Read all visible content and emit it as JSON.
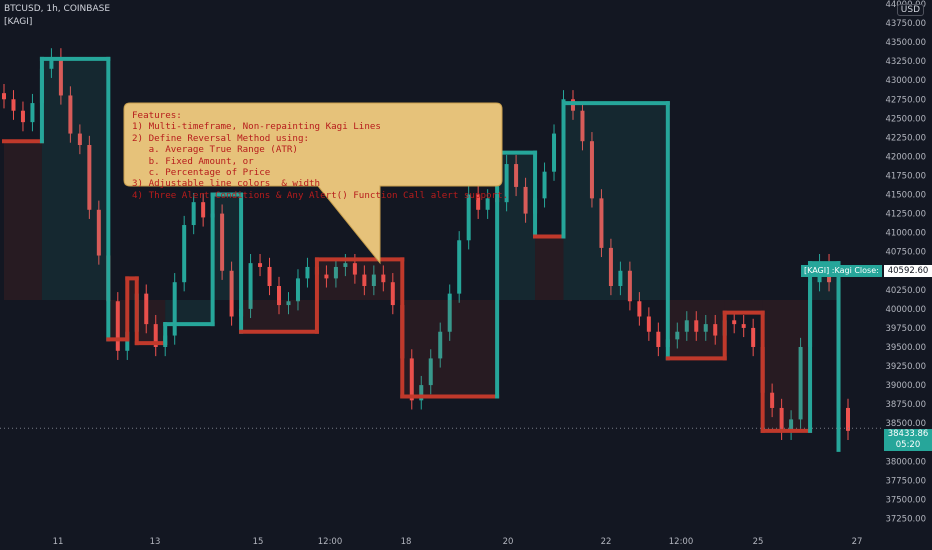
{
  "header": {
    "symbol_line": "BTCUSD, 1h, COINBASE",
    "indicator_line": "[KAGI]",
    "currency": "USD"
  },
  "callout": {
    "lines": [
      "Features:",
      "1) Multi-timeframe, Non-repainting Kagi Lines",
      "2) Define Reversal Method using:",
      "   a. Average True Range (ATR)",
      "   b. Fixed Amount, or",
      "   c. Percentage of Price",
      "3) Adjustable line colors  & width",
      "4) Three Alert Conditions & Any Alert() Function Call alert support."
    ],
    "fill": "#e6c27a",
    "text_color": "#b71c1c"
  },
  "labels": {
    "kagi_label": "[KAGI] :Kagi Close:",
    "kagi_price": "40592.60",
    "last_price": "38433.86",
    "countdown": "05:20"
  },
  "colors": {
    "background": "#131722",
    "up": "#26a69a",
    "down": "#ef5350",
    "kagi_yang": "#26a69a",
    "kagi_yin": "#c0392b"
  },
  "chart_data": {
    "type": "line",
    "title": "BTCUSD, 1h, COINBASE",
    "ylim": [
      37125,
      44000
    ],
    "y_ticks": [
      37250,
      37500,
      37750,
      38000,
      38250,
      38500,
      38750,
      39000,
      39250,
      39500,
      39750,
      40000,
      40250,
      40500,
      40750,
      41000,
      41250,
      41500,
      41750,
      42000,
      42250,
      42500,
      42750,
      43000,
      43250,
      43500,
      43750,
      44000
    ],
    "x_ticks": [
      "11",
      "13",
      "15",
      "12:00",
      "18",
      "20",
      "22",
      "12:00",
      "25",
      "27"
    ],
    "grid": false,
    "kagi_series": {
      "name": "Kagi Close",
      "points": [
        {
          "bar": 0,
          "price": 42200,
          "dir": "yin"
        },
        {
          "bar": 4,
          "price": 42200,
          "dir": "yin"
        },
        {
          "bar": 4,
          "price": 43280,
          "dir": "yang"
        },
        {
          "bar": 11,
          "price": 43280,
          "dir": "yang"
        },
        {
          "bar": 11,
          "price": 39600,
          "dir": "yin"
        },
        {
          "bar": 13,
          "price": 39600,
          "dir": "yin"
        },
        {
          "bar": 13,
          "price": 40400,
          "dir": "yin"
        },
        {
          "bar": 14,
          "price": 40400,
          "dir": "yin"
        },
        {
          "bar": 14,
          "price": 39550,
          "dir": "yin"
        },
        {
          "bar": 17,
          "price": 39550,
          "dir": "yin"
        },
        {
          "bar": 17,
          "price": 39800,
          "dir": "yang"
        },
        {
          "bar": 22,
          "price": 39800,
          "dir": "yang"
        },
        {
          "bar": 22,
          "price": 41500,
          "dir": "yang"
        },
        {
          "bar": 25,
          "price": 41500,
          "dir": "yang"
        },
        {
          "bar": 25,
          "price": 39700,
          "dir": "yin"
        },
        {
          "bar": 33,
          "price": 39700,
          "dir": "yin"
        },
        {
          "bar": 33,
          "price": 40650,
          "dir": "yin"
        },
        {
          "bar": 42,
          "price": 40650,
          "dir": "yin"
        },
        {
          "bar": 42,
          "price": 38850,
          "dir": "yin"
        },
        {
          "bar": 52,
          "price": 38850,
          "dir": "yin"
        },
        {
          "bar": 52,
          "price": 42050,
          "dir": "yang"
        },
        {
          "bar": 56,
          "price": 42050,
          "dir": "yang"
        },
        {
          "bar": 56,
          "price": 40950,
          "dir": "yin"
        },
        {
          "bar": 59,
          "price": 40950,
          "dir": "yin"
        },
        {
          "bar": 59,
          "price": 42700,
          "dir": "yang"
        },
        {
          "bar": 70,
          "price": 42700,
          "dir": "yang"
        },
        {
          "bar": 70,
          "price": 39350,
          "dir": "yin"
        },
        {
          "bar": 76,
          "price": 39350,
          "dir": "yin"
        },
        {
          "bar": 76,
          "price": 39950,
          "dir": "yin"
        },
        {
          "bar": 80,
          "price": 39950,
          "dir": "yin"
        },
        {
          "bar": 80,
          "price": 38400,
          "dir": "yin"
        },
        {
          "bar": 85,
          "price": 38400,
          "dir": "yin"
        },
        {
          "bar": 85,
          "price": 40600,
          "dir": "yang"
        },
        {
          "bar": 88,
          "price": 40600,
          "dir": "yang"
        },
        {
          "bar": 88,
          "price": 38150,
          "dir": "yin"
        }
      ]
    },
    "candles": {
      "count": 90,
      "closes": [
        42750,
        42600,
        42450,
        42700,
        43150,
        43300,
        42800,
        42300,
        42150,
        41300,
        40700,
        40100,
        39450,
        39700,
        40200,
        39800,
        39500,
        39650,
        40350,
        41100,
        41400,
        41200,
        41250,
        40500,
        39900,
        40000,
        40600,
        40550,
        40300,
        40050,
        40100,
        40400,
        40550,
        40450,
        40400,
        40550,
        40600,
        40450,
        40300,
        40450,
        40350,
        40050,
        39350,
        38800,
        39000,
        39350,
        39700,
        40200,
        40900,
        41500,
        41300,
        41450,
        41400,
        41900,
        41600,
        41250,
        41450,
        41800,
        42300,
        42750,
        42600,
        42200,
        41450,
        40800,
        40300,
        40500,
        40100,
        39900,
        39700,
        39500,
        39600,
        39700,
        39850,
        39700,
        39800,
        39650,
        39850,
        39800,
        39750,
        39500,
        38900,
        38700,
        38400,
        38550,
        39500,
        40350,
        40600,
        40350,
        38700,
        38400
      ]
    },
    "last_price": 38433.86,
    "kagi_last": 40592.6
  }
}
